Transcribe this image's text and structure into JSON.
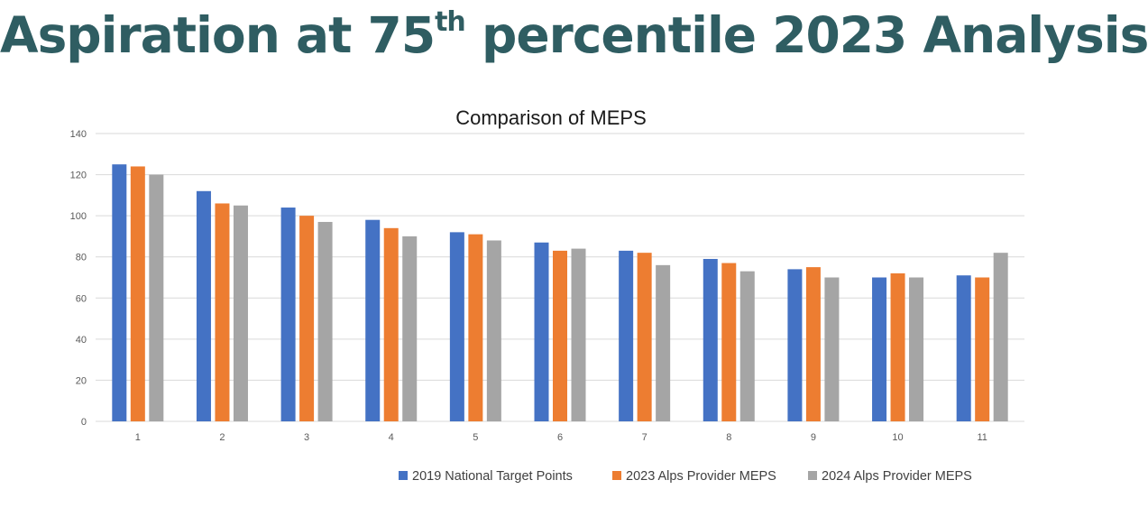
{
  "slide": {
    "title_main": "Aspiration at 75",
    "title_sup": "th",
    "title_rest": " percentile 2023 Analysis"
  },
  "colors": {
    "title": "#2f5d62"
  },
  "chart_data": {
    "type": "bar",
    "title": "Comparison of MEPS",
    "xlabel": "",
    "ylabel": "",
    "ylim": [
      0,
      140
    ],
    "yticks": [
      0,
      20,
      40,
      60,
      80,
      100,
      120,
      140
    ],
    "grid": true,
    "legend_position": "bottom",
    "categories": [
      "1",
      "2",
      "3",
      "4",
      "5",
      "6",
      "7",
      "8",
      "9",
      "10",
      "11"
    ],
    "series": [
      {
        "name": "2019 National Target Points",
        "color": "#4472c4",
        "values": [
          125,
          112,
          104,
          98,
          92,
          87,
          83,
          79,
          74,
          70,
          71
        ]
      },
      {
        "name": "2023 Alps Provider MEPS",
        "color": "#ed7d31",
        "values": [
          124,
          106,
          100,
          94,
          91,
          83,
          82,
          77,
          75,
          72,
          70
        ]
      },
      {
        "name": "2024 Alps Provider MEPS",
        "color": "#a5a5a5",
        "values": [
          120,
          105,
          97,
          90,
          88,
          84,
          76,
          73,
          70,
          70,
          82
        ]
      }
    ]
  }
}
